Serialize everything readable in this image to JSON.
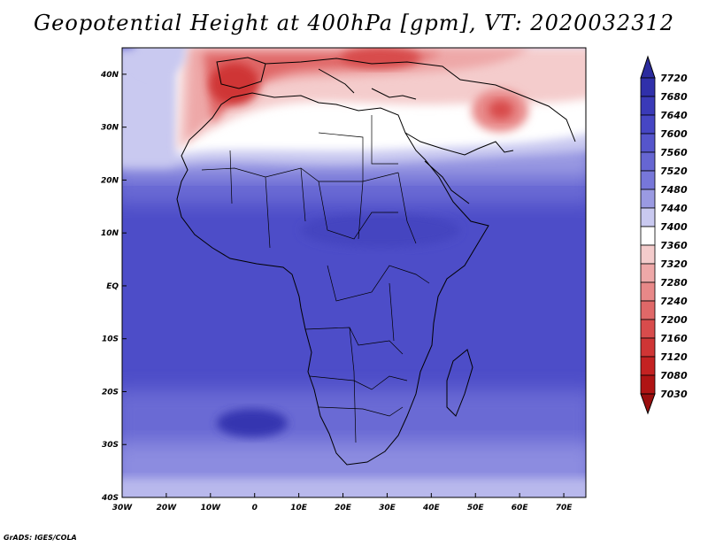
{
  "title": "Geopotential Height at 400hPa [gpm], VT: 2020032312",
  "credit": "GrADS: IGES/COLA",
  "map": {
    "lon_range": [
      -30,
      75
    ],
    "lat_range": [
      -40,
      45
    ],
    "lon_ticks": [
      "30W",
      "20W",
      "10W",
      "0",
      "10E",
      "20E",
      "30E",
      "40E",
      "50E",
      "60E",
      "70E"
    ],
    "lat_ticks": [
      "40N",
      "30N",
      "20N",
      "10N",
      "EQ",
      "10S",
      "20S",
      "30S",
      "40S"
    ]
  },
  "colorbar": {
    "levels": [
      "7720",
      "7680",
      "7640",
      "7600",
      "7560",
      "7520",
      "7480",
      "7440",
      "7400",
      "7360",
      "7320",
      "7280",
      "7240",
      "7200",
      "7160",
      "7120",
      "7080",
      "7030"
    ],
    "colors": [
      "#2b2b9e",
      "#3030aa",
      "#3a3ab8",
      "#4646c4",
      "#5555cc",
      "#6666d2",
      "#7777d9",
      "#9a9ae2",
      "#c9c9f0",
      "#ffffff",
      "#f4cccc",
      "#eea8a8",
      "#e88888",
      "#e06868",
      "#d84c4c",
      "#cf3535",
      "#c42222",
      "#b01414",
      "#9a0e0e"
    ]
  }
}
